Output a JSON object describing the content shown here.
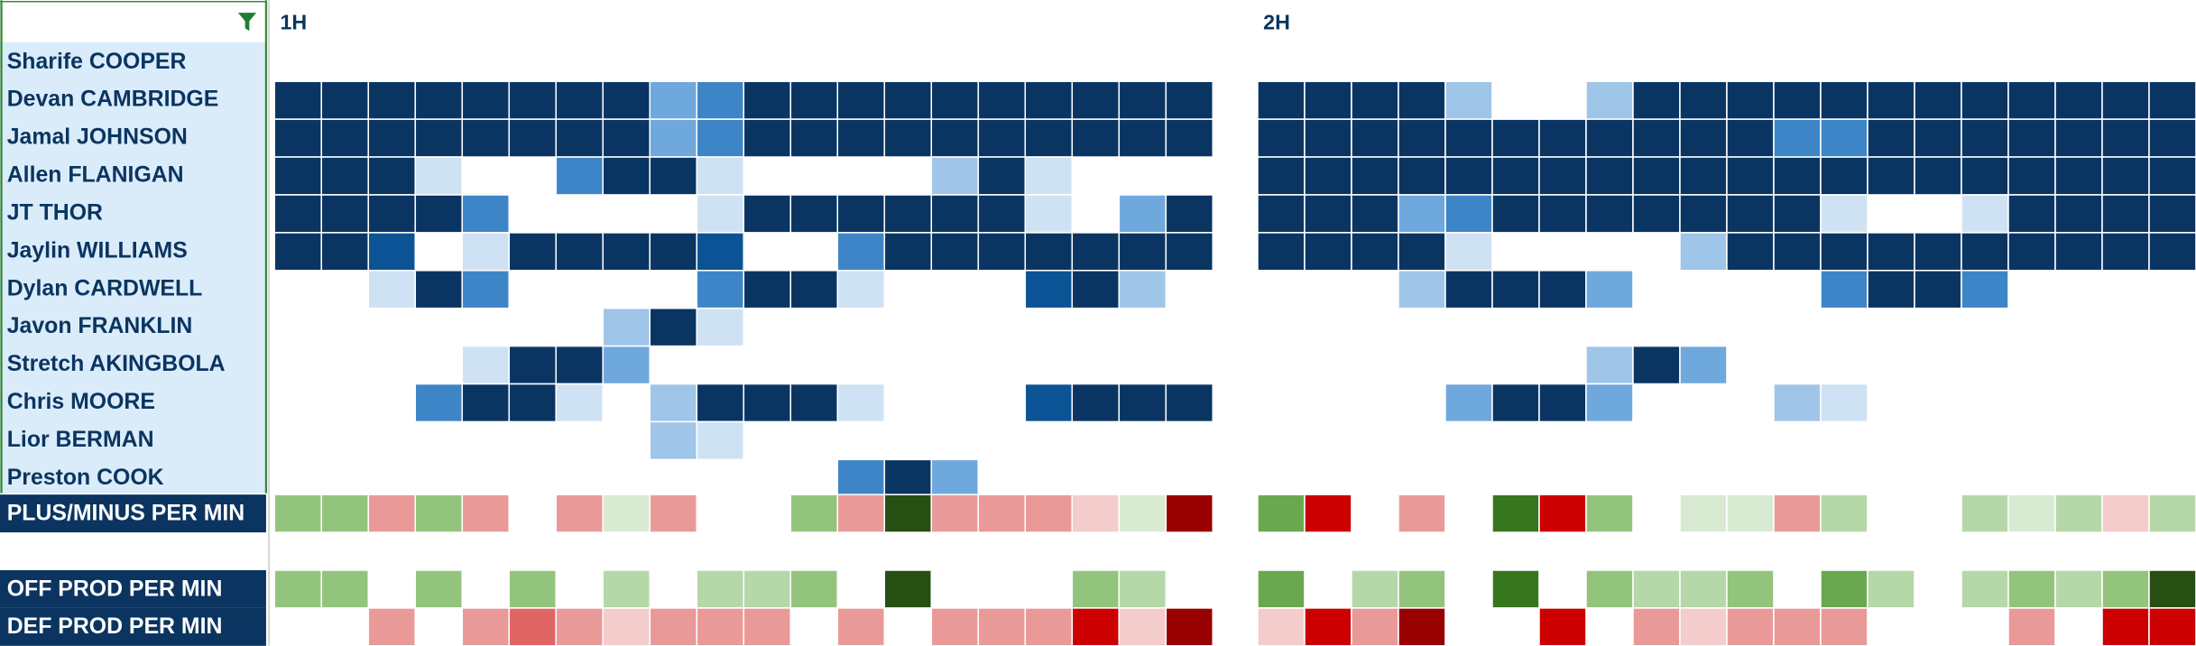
{
  "halves": [
    "1H",
    "2H"
  ],
  "players": [
    {
      "name": "Sharife COOPER",
      "h1": [
        0,
        0,
        0,
        0,
        0,
        0,
        0,
        0,
        0,
        0,
        0,
        0,
        0,
        0,
        0,
        0,
        0,
        0,
        0,
        0
      ],
      "h2": [
        0,
        0,
        0,
        0,
        0,
        0,
        0,
        0,
        0,
        0,
        0,
        0,
        0,
        0,
        0,
        0,
        0,
        0,
        0,
        0
      ]
    },
    {
      "name": "Devan CAMBRIDGE",
      "h1": [
        6,
        6,
        6,
        6,
        6,
        6,
        6,
        6,
        3,
        4,
        6,
        6,
        6,
        6,
        6,
        6,
        6,
        6,
        6,
        6
      ],
      "h2": [
        6,
        6,
        6,
        6,
        2,
        0,
        0,
        2,
        6,
        6,
        6,
        6,
        6,
        6,
        6,
        6,
        6,
        6,
        6,
        6
      ]
    },
    {
      "name": "Jamal JOHNSON",
      "h1": [
        6,
        6,
        6,
        6,
        6,
        6,
        6,
        6,
        3,
        4,
        6,
        6,
        6,
        6,
        6,
        6,
        6,
        6,
        6,
        6
      ],
      "h2": [
        6,
        6,
        6,
        6,
        6,
        6,
        6,
        6,
        6,
        6,
        6,
        4,
        4,
        6,
        6,
        6,
        6,
        6,
        6,
        6
      ]
    },
    {
      "name": "Allen FLANIGAN",
      "h1": [
        6,
        6,
        6,
        1,
        0,
        0,
        4,
        6,
        6,
        1,
        0,
        0,
        0,
        0,
        2,
        6,
        1,
        0,
        0,
        0
      ],
      "h2": [
        6,
        6,
        6,
        6,
        6,
        6,
        6,
        6,
        6,
        6,
        6,
        6,
        6,
        6,
        6,
        6,
        6,
        6,
        6,
        6
      ]
    },
    {
      "name": "JT THOR",
      "h1": [
        6,
        6,
        6,
        6,
        4,
        0,
        0,
        0,
        0,
        1,
        6,
        6,
        6,
        6,
        6,
        6,
        1,
        0,
        3,
        6
      ],
      "h2": [
        6,
        6,
        6,
        3,
        4,
        6,
        6,
        6,
        6,
        6,
        6,
        6,
        1,
        0,
        0,
        1,
        6,
        6,
        6,
        6
      ]
    },
    {
      "name": "Jaylin WILLIAMS",
      "h1": [
        6,
        6,
        5,
        0,
        1,
        6,
        6,
        6,
        6,
        5,
        0,
        0,
        4,
        6,
        6,
        6,
        6,
        6,
        6,
        6
      ],
      "h2": [
        6,
        6,
        6,
        6,
        1,
        0,
        0,
        0,
        0,
        2,
        6,
        6,
        6,
        6,
        6,
        6,
        6,
        6,
        6,
        6
      ]
    },
    {
      "name": "Dylan CARDWELL",
      "h1": [
        0,
        0,
        1,
        6,
        4,
        0,
        0,
        0,
        0,
        4,
        6,
        6,
        1,
        0,
        0,
        0,
        5,
        6,
        2,
        0
      ],
      "h2": [
        0,
        0,
        0,
        2,
        6,
        6,
        6,
        3,
        0,
        0,
        0,
        0,
        4,
        6,
        6,
        4,
        0,
        0,
        0,
        0
      ]
    },
    {
      "name": "Javon FRANKLIN",
      "h1": [
        0,
        0,
        0,
        0,
        0,
        0,
        0,
        2,
        6,
        1,
        0,
        0,
        0,
        0,
        0,
        0,
        0,
        0,
        0,
        0
      ],
      "h2": [
        0,
        0,
        0,
        0,
        0,
        0,
        0,
        0,
        0,
        0,
        0,
        0,
        0,
        0,
        0,
        0,
        0,
        0,
        0,
        0
      ]
    },
    {
      "name": "Stretch AKINGBOLA",
      "h1": [
        0,
        0,
        0,
        0,
        1,
        6,
        6,
        3,
        0,
        0,
        0,
        0,
        0,
        0,
        0,
        0,
        0,
        0,
        0,
        0
      ],
      "h2": [
        0,
        0,
        0,
        0,
        0,
        0,
        0,
        2,
        6,
        3,
        0,
        0,
        0,
        0,
        0,
        0,
        0,
        0,
        0,
        0
      ]
    },
    {
      "name": "Chris MOORE",
      "h1": [
        0,
        0,
        0,
        4,
        6,
        6,
        1,
        0,
        2,
        6,
        6,
        6,
        1,
        0,
        0,
        0,
        5,
        6,
        6,
        6
      ],
      "h2": [
        0,
        0,
        0,
        0,
        3,
        6,
        6,
        3,
        0,
        0,
        0,
        2,
        1,
        0,
        0,
        0,
        0,
        0,
        0,
        0
      ]
    },
    {
      "name": "Lior BERMAN",
      "h1": [
        0,
        0,
        0,
        0,
        0,
        0,
        0,
        0,
        2,
        1,
        0,
        0,
        0,
        0,
        0,
        0,
        0,
        0,
        0,
        0
      ],
      "h2": [
        0,
        0,
        0,
        0,
        0,
        0,
        0,
        0,
        0,
        0,
        0,
        0,
        0,
        0,
        0,
        0,
        0,
        0,
        0,
        0
      ]
    },
    {
      "name": "Preston COOK",
      "h1": [
        0,
        0,
        0,
        0,
        0,
        0,
        0,
        0,
        0,
        0,
        0,
        0,
        4,
        6,
        3,
        0,
        0,
        0,
        0,
        0
      ],
      "h2": [
        0,
        0,
        0,
        0,
        0,
        0,
        0,
        0,
        0,
        0,
        0,
        0,
        0,
        0,
        0,
        0,
        0,
        0,
        0,
        0
      ]
    }
  ],
  "metrics": [
    {
      "name": "PLUS/MINUS PER MIN",
      "h1": [
        3,
        3,
        -2,
        3,
        -2,
        null,
        -2,
        1,
        -2,
        null,
        null,
        3,
        -2,
        6,
        -2,
        -2,
        -2,
        -1,
        1,
        -5
      ],
      "h2": [
        4,
        -4,
        null,
        -2,
        null,
        5,
        -4,
        3,
        null,
        1,
        1,
        -2,
        2,
        null,
        null,
        2,
        1,
        2,
        -1,
        2
      ]
    },
    {
      "name": "OFF PROD PER MIN",
      "h1": [
        3,
        3,
        null,
        3,
        null,
        3,
        null,
        2,
        null,
        2,
        2,
        3,
        null,
        6,
        null,
        null,
        null,
        3,
        2,
        null
      ],
      "h2": [
        4,
        null,
        2,
        3,
        null,
        5,
        null,
        3,
        2,
        2,
        3,
        null,
        4,
        2,
        null,
        2,
        3,
        2,
        3,
        6
      ]
    },
    {
      "name": "DEF PROD PER MIN",
      "h1": [
        null,
        null,
        -2,
        null,
        -2,
        -3,
        -2,
        -1,
        -2,
        -2,
        -2,
        null,
        -2,
        null,
        -2,
        -2,
        -2,
        -4,
        -1,
        -5
      ],
      "h2": [
        -1,
        -4,
        -2,
        -5,
        null,
        null,
        -4,
        null,
        -2,
        -1,
        -2,
        -2,
        -2,
        null,
        null,
        null,
        -2,
        null,
        -4,
        -4
      ]
    }
  ]
}
